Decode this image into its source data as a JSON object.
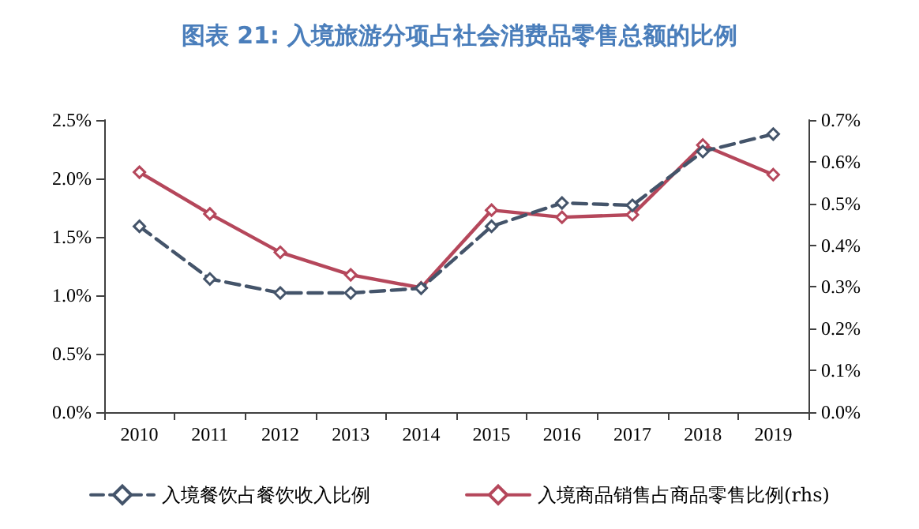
{
  "chart_data": {
    "type": "line",
    "title": "图表 21: 入境旅游分项占社会消费品零售总额的比例",
    "categories": [
      "2010",
      "2011",
      "2012",
      "2013",
      "2014",
      "2015",
      "2016",
      "2017",
      "2018",
      "2019"
    ],
    "series": [
      {
        "name": "入境餐饮占餐饮收入比例",
        "color": "#44546a",
        "line_style": "dashed",
        "values": [
          1.59,
          1.14,
          1.02,
          1.02,
          1.06,
          1.59,
          1.79,
          1.77,
          2.23,
          2.38
        ]
      },
      {
        "name": "入境商品销售占商品零售比例(rhs)",
        "color": "#b5475b",
        "line_style": "solid",
        "axis": "y2",
        "values": [
          0.575,
          0.475,
          0.383,
          0.329,
          0.298,
          0.484,
          0.467,
          0.473,
          0.64,
          0.569
        ]
      }
    ],
    "ylim": [
      0,
      2.5
    ],
    "yticks": [
      {
        "value": 0,
        "label": "0.0%"
      },
      {
        "value": 0.5,
        "label": "0.5%"
      },
      {
        "value": 1,
        "label": "1.0%"
      },
      {
        "value": 1.5,
        "label": "1.5%"
      },
      {
        "value": 2,
        "label": "2.0%"
      },
      {
        "value": 2.5,
        "label": "2.5%"
      }
    ],
    "y2lim": [
      0,
      0.7
    ],
    "y2ticks": [
      {
        "value": 0,
        "label": "0.0%"
      },
      {
        "value": 0.1,
        "label": "0.1%"
      },
      {
        "value": 0.2,
        "label": "0.2%"
      },
      {
        "value": 0.3,
        "label": "0.3%"
      },
      {
        "value": 0.4,
        "label": "0.4%"
      },
      {
        "value": 0.5,
        "label": "0.5%"
      },
      {
        "value": 0.6,
        "label": "0.6%"
      },
      {
        "value": 0.7,
        "label": "0.7%"
      }
    ],
    "grid": false,
    "legend": "bottom",
    "marker": "diamond"
  }
}
